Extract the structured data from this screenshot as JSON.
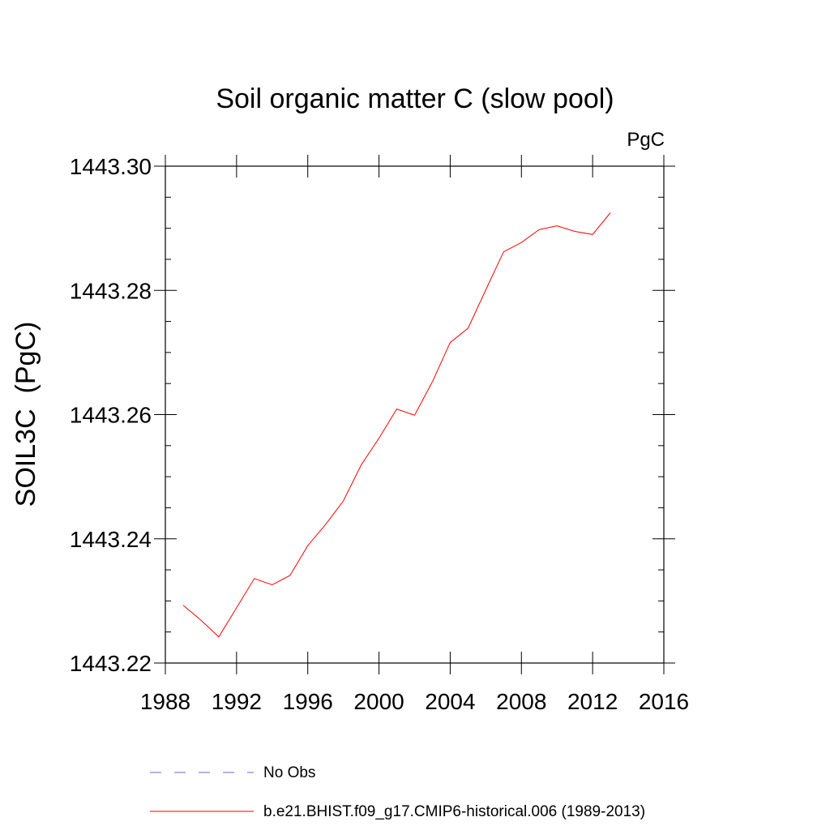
{
  "chart_data": {
    "type": "line",
    "title": "Soil organic matter C (slow pool)",
    "units_label": "PgC",
    "ylabel": "SOIL3C  (PgC)",
    "xlabel": "",
    "xlim": [
      1988,
      2016
    ],
    "ylim": [
      1443.22,
      1443.3
    ],
    "x_ticks": [
      "1988",
      "1992",
      "1996",
      "2000",
      "2004",
      "2008",
      "2012",
      "2016"
    ],
    "y_ticks": [
      "1443.22",
      "1443.24",
      "1443.26",
      "1443.28",
      "1443.30"
    ],
    "grid": false,
    "legend_position": "bottom",
    "series": [
      {
        "name": "b.e21.BHIST.f09_g17.CMIP6-historical.006 (1989-2013)",
        "color": "#ff0000",
        "style": "solid",
        "x": [
          1989,
          1990,
          1991,
          1992,
          1993,
          1994,
          1995,
          1996,
          1997,
          1998,
          1999,
          2000,
          2001,
          2002,
          2003,
          2004,
          2005,
          2006,
          2007,
          2008,
          2009,
          2010,
          2011,
          2012,
          2013
        ],
        "y": [
          1443.2293,
          1443.2269,
          1443.2242,
          1443.2289,
          1443.2336,
          1443.2326,
          1443.2341,
          1443.2389,
          1443.2423,
          1443.2461,
          1443.2519,
          1443.2562,
          1443.2609,
          1443.2599,
          1443.2653,
          1443.2716,
          1443.2739,
          1443.2801,
          1443.2862,
          1443.2877,
          1443.2898,
          1443.2904,
          1443.2895,
          1443.289,
          1443.2925
        ]
      }
    ],
    "legend": [
      {
        "label": "No Obs",
        "color": "#6a6ad0",
        "style": "dashed"
      },
      {
        "label": "b.e21.BHIST.f09_g17.CMIP6-historical.006 (1989-2013)",
        "color": "#ff0000",
        "style": "solid"
      }
    ]
  }
}
